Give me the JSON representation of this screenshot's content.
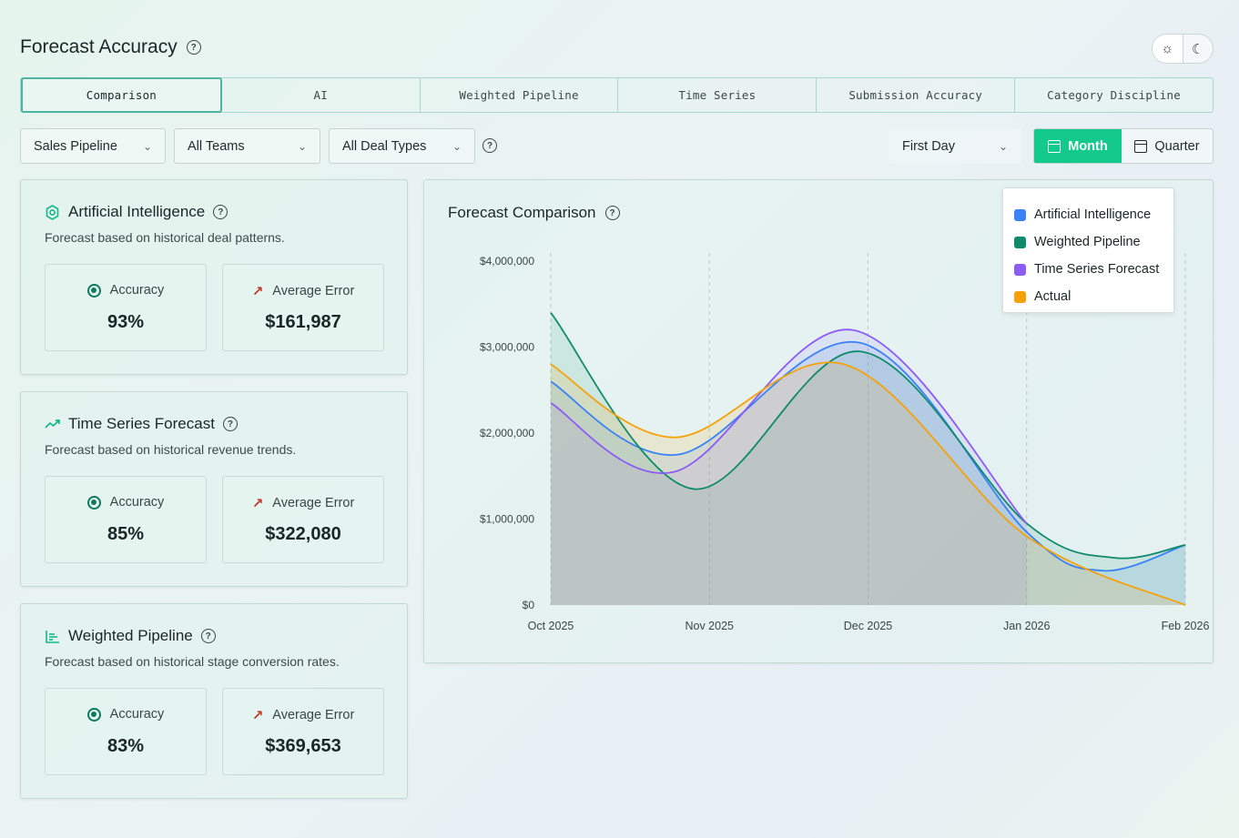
{
  "header": {
    "title": "Forecast Accuracy"
  },
  "theme_toggle": {
    "light_icon": "sun-icon",
    "dark_icon": "moon-icon"
  },
  "tabs": [
    {
      "label": "Comparison",
      "active": true
    },
    {
      "label": "AI"
    },
    {
      "label": "Weighted Pipeline"
    },
    {
      "label": "Time Series"
    },
    {
      "label": "Submission Accuracy"
    },
    {
      "label": "Category Discipline"
    }
  ],
  "filters": {
    "pipeline": "Sales Pipeline",
    "teams": "All Teams",
    "deal_types": "All Deal Types",
    "day": "First Day",
    "period_month": "Month",
    "period_quarter": "Quarter",
    "active_period": "Month"
  },
  "cards": [
    {
      "title": "Artificial Intelligence",
      "description": "Forecast based on historical deal patterns.",
      "icon": "ai-chip-icon",
      "accuracy_label": "Accuracy",
      "accuracy": "93%",
      "error_label": "Average Error",
      "error": "$161,987"
    },
    {
      "title": "Time Series Forecast",
      "description": "Forecast based on historical revenue trends.",
      "icon": "trend-up-icon",
      "accuracy_label": "Accuracy",
      "accuracy": "85%",
      "error_label": "Average Error",
      "error": "$322,080"
    },
    {
      "title": "Weighted Pipeline",
      "description": "Forecast based on historical stage conversion rates.",
      "icon": "bar-chart-icon",
      "accuracy_label": "Accuracy",
      "accuracy": "83%",
      "error_label": "Average Error",
      "error": "$369,653"
    }
  ],
  "chart": {
    "title": "Forecast Comparison"
  },
  "colors": {
    "ai": "#3b82f6",
    "weighted": "#0f8a6a",
    "time_series": "#8b5cf6",
    "actual": "#f5a20a",
    "accent": "#14c98c"
  },
  "chart_data": {
    "type": "area",
    "x": [
      "Oct 2025",
      "Nov 2025",
      "Dec 2025",
      "Jan 2026",
      "Feb 2026"
    ],
    "yticks": [
      "$0",
      "$1,000,000",
      "$2,000,000",
      "$3,000,000",
      "$4,000,000"
    ],
    "ylim": [
      0,
      4000000
    ],
    "grid": "vertical dashed",
    "legend_position": "top-right",
    "series": [
      {
        "name": "Artificial Intelligence",
        "color": "#3b82f6",
        "points": [
          [
            0,
            2600000
          ],
          [
            0.8,
            1750000
          ],
          [
            1.95,
            3050000
          ],
          [
            3,
            850000
          ],
          [
            3.48,
            400000
          ],
          [
            4,
            700000
          ]
        ]
      },
      {
        "name": "Weighted Pipeline",
        "color": "#0f8a6a",
        "points": [
          [
            0,
            3400000
          ],
          [
            0.9,
            1350000
          ],
          [
            1.95,
            2950000
          ],
          [
            3,
            950000
          ],
          [
            3.55,
            550000
          ],
          [
            4,
            700000
          ]
        ]
      },
      {
        "name": "Time Series Forecast",
        "color": "#8b5cf6",
        "points": [
          [
            0,
            2350000
          ],
          [
            0.78,
            1550000
          ],
          [
            1.9,
            3200000
          ],
          [
            3,
            950000
          ]
        ]
      },
      {
        "name": "Actual",
        "color": "#f5a20a",
        "points": [
          [
            0,
            2800000
          ],
          [
            0.78,
            1950000
          ],
          [
            1.85,
            2800000
          ],
          [
            3,
            800000
          ],
          [
            4,
            0
          ]
        ]
      }
    ]
  }
}
